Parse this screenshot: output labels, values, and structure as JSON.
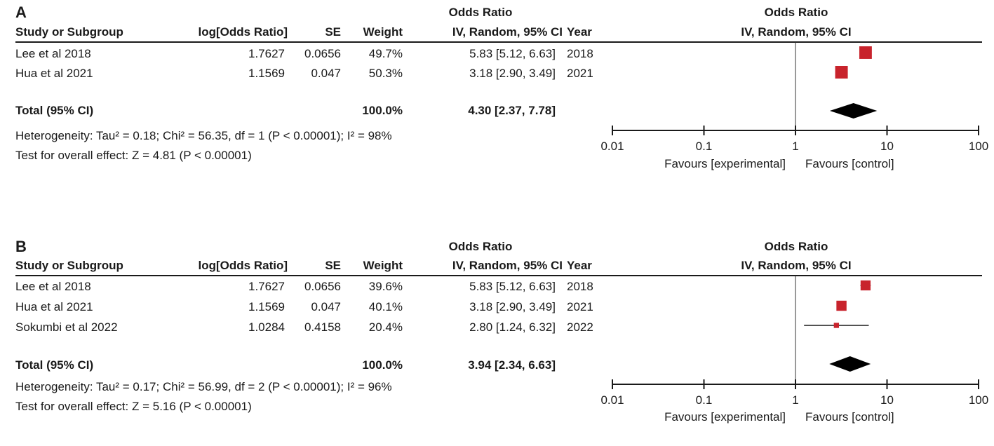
{
  "headers": {
    "study": "Study or Subgroup",
    "log_or": "log[Odds Ratio]",
    "se": "SE",
    "weight": "Weight",
    "or_title": "Odds Ratio",
    "or_method": "IV, Random, 95% CI",
    "year": "Year"
  },
  "chart_data": [
    {
      "type": "forest",
      "panel_label": "A",
      "studies": [
        {
          "name": "Lee et al 2018",
          "log_or": "1.7627",
          "se": "0.0656",
          "weight": "49.7%",
          "or_text": "5.83 [5.12, 6.63]",
          "year": "2018",
          "or": 5.83,
          "ci": [
            5.12,
            6.63
          ],
          "w": 49.7
        },
        {
          "name": "Hua et al 2021",
          "log_or": "1.1569",
          "se": "0.047",
          "weight": "50.3%",
          "or_text": "3.18 [2.90, 3.49]",
          "year": "2021",
          "or": 3.18,
          "ci": [
            2.9,
            3.49
          ],
          "w": 50.3
        }
      ],
      "total": {
        "label": "Total (95% CI)",
        "weight": "100.0%",
        "or_text": "4.30 [2.37, 7.78]",
        "or": 4.3,
        "ci": [
          2.37,
          7.78
        ]
      },
      "heterogeneity": "Heterogeneity: Tau² = 0.18; Chi² = 56.35, df = 1 (P < 0.00001); I² = 98%",
      "overall_effect": "Test for overall effect: Z = 4.81 (P < 0.00001)",
      "axis": {
        "scale": "log",
        "ticks": [
          0.01,
          0.1,
          1,
          10,
          100
        ],
        "tick_labels": [
          "0.01",
          "0.1",
          "1",
          "10",
          "100"
        ],
        "range": [
          0.01,
          100
        ]
      },
      "favours_left": "Favours [experimental]",
      "favours_right": "Favours [control]",
      "colors": {
        "marker": "#c8232c",
        "diamond": "#000000"
      }
    },
    {
      "type": "forest",
      "panel_label": "B",
      "studies": [
        {
          "name": "Lee et al 2018",
          "log_or": "1.7627",
          "se": "0.0656",
          "weight": "39.6%",
          "or_text": "5.83 [5.12, 6.63]",
          "year": "2018",
          "or": 5.83,
          "ci": [
            5.12,
            6.63
          ],
          "w": 39.6
        },
        {
          "name": "Hua et al 2021",
          "log_or": "1.1569",
          "se": "0.047",
          "weight": "40.1%",
          "or_text": "3.18 [2.90, 3.49]",
          "year": "2021",
          "or": 3.18,
          "ci": [
            2.9,
            3.49
          ],
          "w": 40.1
        },
        {
          "name": "Sokumbi et al 2022",
          "log_or": "1.0284",
          "se": "0.4158",
          "weight": "20.4%",
          "or_text": "2.80 [1.24, 6.32]",
          "year": "2022",
          "or": 2.8,
          "ci": [
            1.24,
            6.32
          ],
          "w": 20.4
        }
      ],
      "total": {
        "label": "Total (95% CI)",
        "weight": "100.0%",
        "or_text": "3.94 [2.34, 6.63]",
        "or": 3.94,
        "ci": [
          2.34,
          6.63
        ]
      },
      "heterogeneity": "Heterogeneity: Tau² = 0.17; Chi² = 56.99, df = 2 (P < 0.00001); I² = 96%",
      "overall_effect": "Test for overall effect: Z = 5.16 (P < 0.00001)",
      "axis": {
        "scale": "log",
        "ticks": [
          0.01,
          0.1,
          1,
          10,
          100
        ],
        "tick_labels": [
          "0.01",
          "0.1",
          "1",
          "10",
          "100"
        ],
        "range": [
          0.01,
          100
        ]
      },
      "favours_left": "Favours [experimental]",
      "favours_right": "Favours [control]",
      "colors": {
        "marker": "#c8232c",
        "diamond": "#000000"
      }
    }
  ]
}
